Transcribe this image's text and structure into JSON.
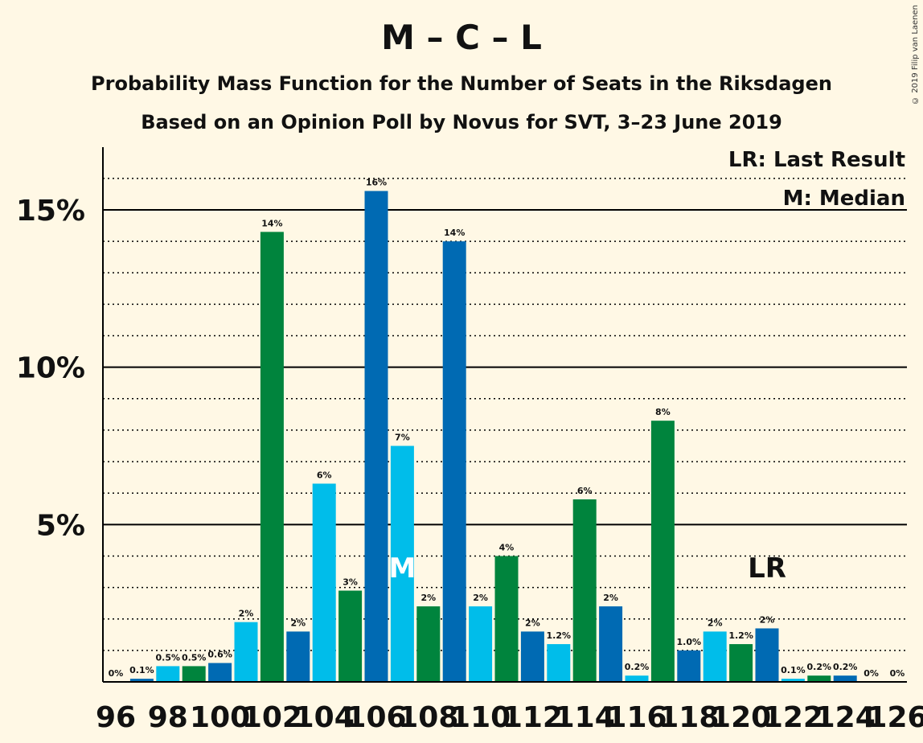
{
  "title": "M – C – L",
  "subtitle_line1": "Probability Mass Function for the Number of Seats in the Riksdagen",
  "subtitle_line2": "Based on an Opinion Poll by Novus for SVT, 3–23 June 2019",
  "copyright": "© 2019 Filip van Laenen",
  "legend": {
    "last_result": "LR: Last Result",
    "median": "M: Median"
  },
  "colors": {
    "background": "#FFF8E5",
    "dark_blue": "#006AB3",
    "light_blue": "#00BDEA",
    "green": "#00843D"
  },
  "chart_data": {
    "type": "bar",
    "x": [
      96,
      97,
      98,
      99,
      100,
      101,
      102,
      103,
      104,
      105,
      106,
      107,
      108,
      109,
      110,
      111,
      112,
      113,
      114,
      115,
      116,
      117,
      118,
      119,
      120,
      121,
      122,
      123,
      124,
      125,
      126
    ],
    "values": [
      0,
      0.1,
      0.5,
      0.5,
      0.6,
      1.9,
      14.3,
      1.6,
      6.3,
      2.9,
      15.6,
      7.5,
      2.4,
      14.0,
      2.4,
      4.0,
      1.6,
      1.2,
      5.8,
      2.4,
      0.2,
      8.3,
      1.0,
      1.6,
      1.2,
      1.7,
      0.1,
      0.2,
      0.2,
      0,
      0
    ],
    "value_labels": [
      "0%",
      "0.1%",
      "0.5%",
      "0.5%",
      "0.6%",
      "2%",
      "14%",
      "2%",
      "6%",
      "3%",
      "16%",
      "7%",
      "2%",
      "14%",
      "2%",
      "4%",
      "2%",
      "1.2%",
      "6%",
      "2%",
      "0.2%",
      "8%",
      "1.0%",
      "2%",
      "1.2%",
      "2%",
      "0.1%",
      "0.2%",
      "0.2%",
      "0%",
      "0%"
    ],
    "bar_color_cycle": [
      "#00843D",
      "#006AB3",
      "#00BDEA"
    ],
    "x_tick_labels": [
      "96",
      "98",
      "100",
      "102",
      "104",
      "106",
      "108",
      "110",
      "112",
      "114",
      "116",
      "118",
      "120",
      "122",
      "124",
      "126"
    ],
    "y_tick_labels": [
      "5%",
      "10%",
      "15%"
    ],
    "y_ticks": [
      5,
      10,
      15
    ],
    "ylim": [
      0,
      17
    ],
    "median_seat": 107,
    "median_marker": "M",
    "last_result_seat": 121,
    "last_result_marker": "LR"
  }
}
